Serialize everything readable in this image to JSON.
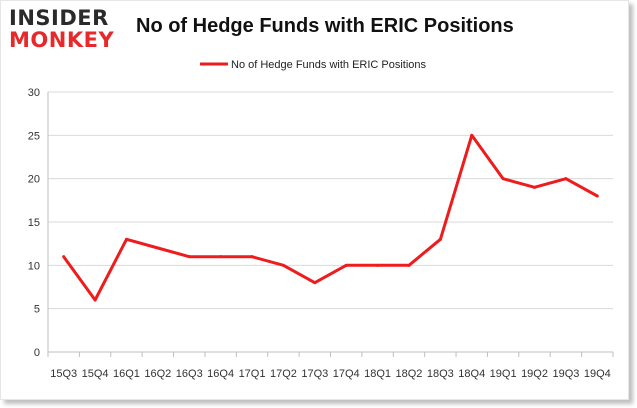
{
  "logo": {
    "line1": "INSIDER",
    "line2": "MONKEY"
  },
  "chart_data": {
    "type": "line",
    "title": "No of Hedge Funds with ERIC Positions",
    "categories": [
      "15Q3",
      "15Q4",
      "16Q1",
      "16Q2",
      "16Q3",
      "16Q4",
      "17Q1",
      "17Q2",
      "17Q3",
      "17Q4",
      "18Q1",
      "18Q2",
      "18Q3",
      "18Q4",
      "19Q1",
      "19Q2",
      "19Q3",
      "19Q4"
    ],
    "series": [
      {
        "name": "No of Hedge Funds with ERIC Positions",
        "values": [
          11,
          6,
          13,
          12,
          11,
          11,
          11,
          10,
          8,
          10,
          10,
          10,
          13,
          25,
          20,
          19,
          20,
          18
        ],
        "color": "#ee1c1c"
      }
    ],
    "xlabel": "",
    "ylabel": "",
    "ylim": [
      0,
      30
    ],
    "yticks": [
      0,
      5,
      10,
      15,
      20,
      25,
      30
    ],
    "grid": "horizontal",
    "legend_position": "top"
  }
}
